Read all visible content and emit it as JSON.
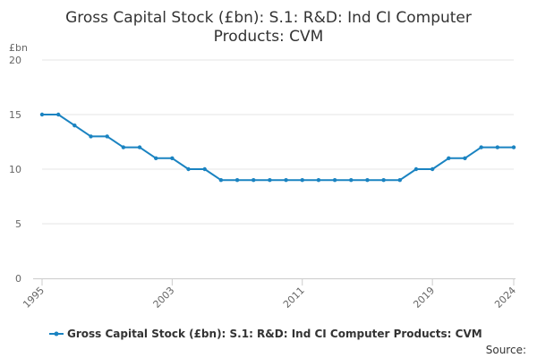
{
  "chart_data": {
    "type": "line",
    "title_lines": [
      "Gross Capital Stock (£bn): S.1: R&D: Ind CI Computer",
      "Products: CVM"
    ],
    "ylabel": "£bn",
    "xlabel": "",
    "ylim": [
      0,
      20
    ],
    "yticks": [
      "0",
      "5",
      "10",
      "15",
      "20"
    ],
    "xlim": [
      1995,
      2024
    ],
    "xticks": [
      "1995",
      "2003",
      "2011",
      "2019",
      "2024"
    ],
    "grid": true,
    "legend_position": "bottom",
    "series": [
      {
        "name": "Gross Capital Stock (£bn): S.1: R&D: Ind CI Computer Products: CVM",
        "color": "#1a83c1",
        "x": [
          1995,
          1996,
          1997,
          1998,
          1999,
          2000,
          2001,
          2002,
          2003,
          2004,
          2005,
          2006,
          2007,
          2008,
          2009,
          2010,
          2011,
          2012,
          2013,
          2014,
          2015,
          2016,
          2017,
          2018,
          2019,
          2020,
          2021,
          2022,
          2023,
          2024
        ],
        "values": [
          15,
          15,
          14,
          13,
          13,
          12,
          12,
          11,
          11,
          10,
          10,
          9,
          9,
          9,
          9,
          9,
          9,
          9,
          9,
          9,
          9,
          9,
          9,
          10,
          10,
          11,
          11,
          12,
          12,
          12
        ]
      }
    ],
    "source_label": "Source:"
  },
  "colors": {
    "line": "#1a83c1",
    "grid": "#e6e6e6",
    "axis": "#cccccc"
  }
}
